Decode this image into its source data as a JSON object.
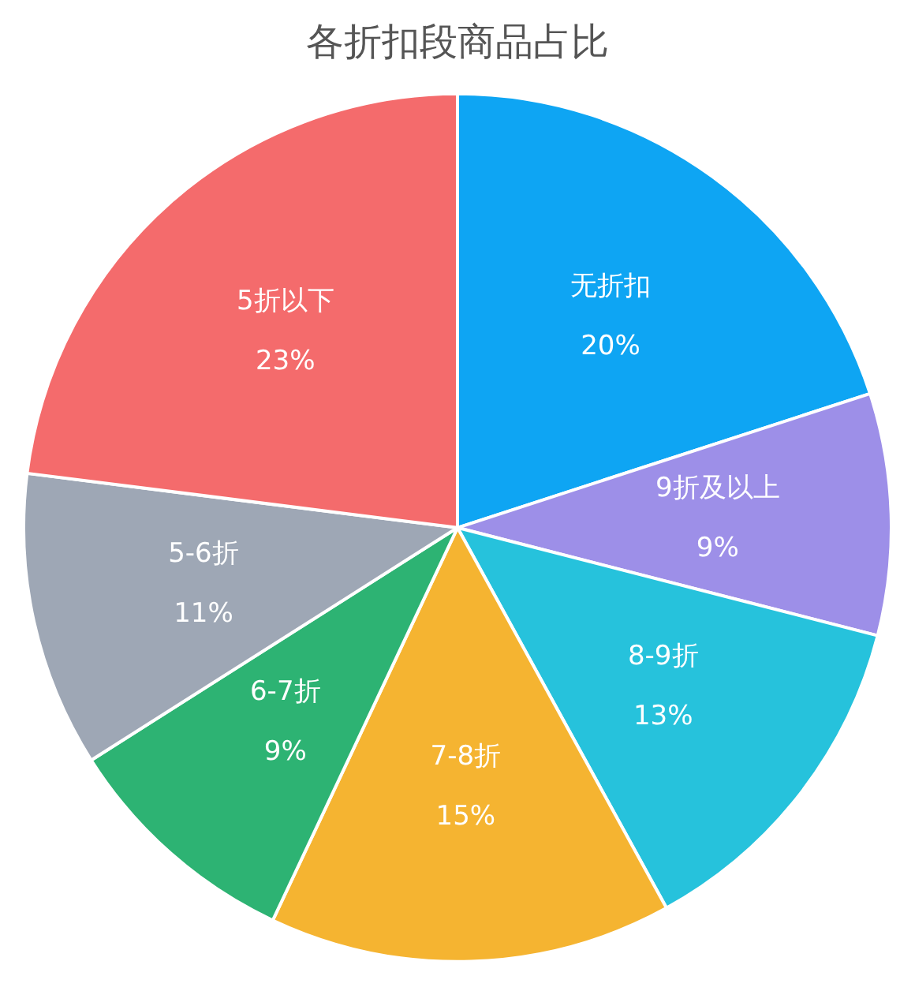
{
  "chart_data": {
    "type": "pie",
    "title": "各折扣段商品占比",
    "categories": [
      "无折扣",
      "9折及以上",
      "8-9折",
      "7-8折",
      "6-7折",
      "5-6折",
      "5折以下"
    ],
    "values": [
      20,
      9,
      13,
      15,
      9,
      11,
      23
    ],
    "colors": [
      "#0ea5f3",
      "#9d8fe8",
      "#26c2dc",
      "#f5b431",
      "#2db373",
      "#9ea7b5",
      "#f46b6c"
    ],
    "value_labels": [
      "20%",
      "9%",
      "13%",
      "15%",
      "9%",
      "11%",
      "23%"
    ],
    "legend": false
  }
}
